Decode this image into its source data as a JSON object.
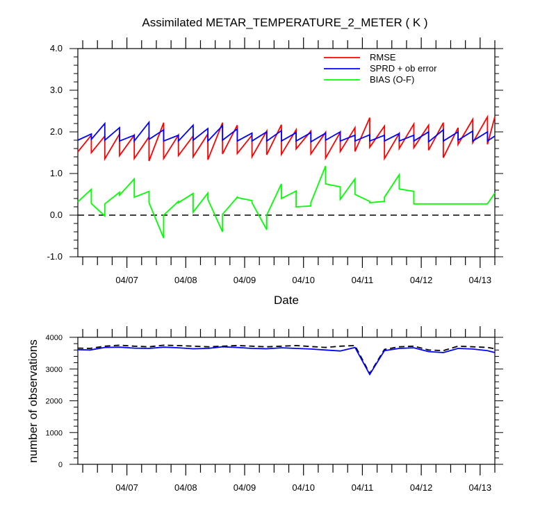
{
  "title": "Assimilated METAR_TEMPERATURE_2_METER ( K )",
  "chart_data": [
    {
      "type": "line",
      "title": "Assimilated METAR_TEMPERATURE_2_METER ( K )",
      "xlabel": "Date",
      "ylabel": "",
      "ylim": [
        -1.0,
        4.0
      ],
      "yticks": [
        -1.0,
        0.0,
        1.0,
        2.0,
        3.0,
        4.0
      ],
      "ytick_labels": [
        "-1.0",
        "0.0",
        "1.0",
        "2.0",
        "3.0",
        "4.0"
      ],
      "xlim": [
        "04/06 04:00",
        "04/13 06:00"
      ],
      "xticks": [
        "04/07",
        "04/08",
        "04/09",
        "04/10",
        "04/11",
        "04/12",
        "04/13"
      ],
      "grid": false,
      "legend": "top-right",
      "reference_line": {
        "y": 0.0,
        "style": "dashed",
        "color": "#000000"
      },
      "series": [
        {
          "name": "RMSE",
          "color": "#ff0000",
          "x": [
            "04/06 04:00",
            "04/06 09:30",
            "04/06 09:30",
            "04/06 15:00",
            "04/06 15:00",
            "04/06 21:00",
            "04/06 21:00",
            "04/07 03:00",
            "04/07 03:00",
            "04/07 09:00",
            "04/07 09:00",
            "04/07 15:00",
            "04/07 15:00",
            "04/07 21:00",
            "04/07 21:00",
            "04/08 03:00",
            "04/08 03:00",
            "04/08 09:00",
            "04/08 09:00",
            "04/08 15:00",
            "04/08 15:00",
            "04/08 21:00",
            "04/08 21:00",
            "04/09 03:00",
            "04/09 03:00",
            "04/09 09:00",
            "04/09 09:00",
            "04/09 15:00",
            "04/09 15:00",
            "04/09 21:00",
            "04/09 21:00",
            "04/10 03:00",
            "04/10 03:00",
            "04/10 09:00",
            "04/10 09:00",
            "04/10 15:00",
            "04/10 15:00",
            "04/10 21:00",
            "04/10 21:00",
            "04/11 03:00",
            "04/11 03:00",
            "04/11 09:00",
            "04/11 09:00",
            "04/11 15:00",
            "04/11 15:00",
            "04/11 21:00",
            "04/11 21:00",
            "04/12 03:00",
            "04/12 03:00",
            "04/12 09:00",
            "04/12 09:00",
            "04/12 15:00",
            "04/12 15:00",
            "04/12 21:00",
            "04/12 21:00",
            "04/13 03:00",
            "04/13 03:00",
            "04/13 06:00"
          ],
          "values": [
            1.52,
            1.92,
            1.5,
            1.9,
            1.35,
            1.95,
            1.43,
            1.92,
            1.36,
            1.88,
            1.3,
            2.22,
            1.36,
            1.92,
            1.43,
            1.9,
            1.4,
            1.95,
            1.33,
            2.22,
            1.47,
            2.16,
            1.48,
            1.92,
            1.4,
            2.02,
            1.45,
            2.17,
            1.46,
            2.05,
            1.59,
            2.02,
            1.47,
            1.99,
            1.37,
            1.99,
            1.53,
            2.1,
            1.53,
            2.34,
            1.63,
            2.14,
            1.36,
            1.96,
            1.6,
            2.19,
            1.62,
            2.16,
            1.56,
            2.22,
            1.38,
            2.1,
            1.7,
            2.3,
            1.74,
            2.36,
            1.7,
            2.36
          ]
        },
        {
          "name": "SPRD + ob error",
          "color": "#0000ff",
          "x": [
            "04/06 04:00",
            "04/06 09:30",
            "04/06 09:30",
            "04/06 15:00",
            "04/06 15:00",
            "04/06 21:00",
            "04/06 21:00",
            "04/07 03:00",
            "04/07 03:00",
            "04/07 09:00",
            "04/07 09:00",
            "04/07 15:00",
            "04/07 15:00",
            "04/07 21:00",
            "04/07 21:00",
            "04/08 03:00",
            "04/08 03:00",
            "04/08 09:00",
            "04/08 09:00",
            "04/08 15:00",
            "04/08 15:00",
            "04/08 21:00",
            "04/08 21:00",
            "04/09 03:00",
            "04/09 03:00",
            "04/09 09:00",
            "04/09 09:00",
            "04/09 15:00",
            "04/09 15:00",
            "04/09 21:00",
            "04/09 21:00",
            "04/10 03:00",
            "04/10 03:00",
            "04/10 09:00",
            "04/10 09:00",
            "04/10 15:00",
            "04/10 15:00",
            "04/10 21:00",
            "04/10 21:00",
            "04/11 03:00",
            "04/11 03:00",
            "04/11 09:00",
            "04/11 09:00",
            "04/11 15:00",
            "04/11 15:00",
            "04/11 21:00",
            "04/11 21:00",
            "04/12 03:00",
            "04/12 03:00",
            "04/12 09:00",
            "04/12 09:00",
            "04/12 15:00",
            "04/12 15:00",
            "04/12 21:00",
            "04/12 21:00",
            "04/13 03:00",
            "04/13 03:00",
            "04/13 06:00"
          ],
          "values": [
            1.8,
            1.95,
            1.82,
            2.2,
            1.8,
            2.1,
            1.78,
            1.92,
            1.78,
            2.23,
            1.82,
            2.05,
            1.78,
            1.92,
            1.78,
            2.16,
            1.8,
            2.08,
            1.78,
            2.15,
            1.8,
            2.07,
            1.78,
            1.97,
            1.78,
            2.0,
            1.78,
            2.03,
            1.78,
            1.98,
            1.78,
            1.98,
            1.76,
            1.97,
            1.8,
            2.0,
            1.78,
            1.92,
            1.78,
            1.93,
            1.78,
            1.92,
            1.78,
            1.96,
            1.78,
            1.92,
            1.78,
            2.0,
            1.76,
            2.05,
            1.78,
            2.0,
            1.8,
            2.02,
            1.78,
            2.0,
            1.78,
            1.9
          ]
        },
        {
          "name": "BIAS (O-F)",
          "color": "#00ff00",
          "x": [
            "04/06 04:00",
            "04/06 09:30",
            "04/06 09:30",
            "04/06 15:00",
            "04/06 15:00",
            "04/06 21:00",
            "04/06 21:00",
            "04/07 03:00",
            "04/07 03:00",
            "04/07 09:00",
            "04/07 09:00",
            "04/07 15:00",
            "04/07 15:00",
            "04/07 21:00",
            "04/07 21:00",
            "04/08 03:00",
            "04/08 03:00",
            "04/08 09:00",
            "04/08 09:00",
            "04/08 15:00",
            "04/08 15:00",
            "04/08 21:00",
            "04/08 21:00",
            "04/09 03:00",
            "04/09 03:00",
            "04/09 09:00",
            "04/09 09:00",
            "04/09 15:00",
            "04/09 15:00",
            "04/09 21:00",
            "04/09 21:00",
            "04/10 03:00",
            "04/10 03:00",
            "04/10 09:00",
            "04/10 09:00",
            "04/10 15:00",
            "04/10 15:00",
            "04/10 21:00",
            "04/10 21:00",
            "04/11 03:00",
            "04/11 03:00",
            "04/11 09:00",
            "04/11 09:00",
            "04/11 15:00",
            "04/11 15:00",
            "04/11 21:00",
            "04/11 21:00",
            "04/12 03:00",
            "04/12 03:00",
            "04/12 09:00",
            "04/12 09:00",
            "04/12 15:00",
            "04/12 15:00",
            "04/12 21:00",
            "04/12 21:00",
            "04/13 03:00",
            "04/13 03:00",
            "04/13 06:00"
          ],
          "values": [
            0.32,
            0.62,
            0.28,
            -0.02,
            0.27,
            0.55,
            0.48,
            0.87,
            0.43,
            0.57,
            0.3,
            -0.55,
            0.0,
            0.33,
            0.3,
            0.52,
            0.07,
            0.53,
            0.38,
            -0.4,
            0.02,
            0.43,
            0.42,
            0.35,
            0.3,
            -0.35,
            0.0,
            0.75,
            0.4,
            0.58,
            0.2,
            0.22,
            0.3,
            1.18,
            0.75,
            0.68,
            0.38,
            0.87,
            0.5,
            0.33,
            0.3,
            0.33,
            0.43,
            0.97,
            0.63,
            0.57,
            0.27,
            0.27,
            0.27,
            0.27,
            0.27,
            0.27,
            0.27,
            0.27,
            0.27,
            0.27,
            0.27,
            0.53
          ]
        }
      ]
    },
    {
      "type": "line",
      "title": "",
      "xlabel": "",
      "ylabel": "number of observations",
      "ylim": [
        0,
        4000
      ],
      "yticks": [
        0,
        1000,
        2000,
        3000,
        4000
      ],
      "ytick_labels": [
        "0",
        "1000",
        "2000",
        "3000",
        "4000"
      ],
      "xlim": [
        "04/06 04:00",
        "04/13 06:00"
      ],
      "xticks": [
        "04/07",
        "04/08",
        "04/09",
        "04/10",
        "04/11",
        "04/12",
        "04/13"
      ],
      "grid": false,
      "series": [
        {
          "name": "",
          "color": "#000000",
          "style": "dashed",
          "x": [
            "04/06 04:00",
            "04/06 09:00",
            "04/06 15:00",
            "04/06 21:00",
            "04/07 03:00",
            "04/07 09:00",
            "04/07 15:00",
            "04/07 21:00",
            "04/08 03:00",
            "04/08 09:00",
            "04/08 15:00",
            "04/08 21:00",
            "04/09 03:00",
            "04/09 09:00",
            "04/09 15:00",
            "04/09 21:00",
            "04/10 03:00",
            "04/10 09:00",
            "04/10 15:00",
            "04/10 21:00",
            "04/11 03:00",
            "04/11 09:00",
            "04/11 15:00",
            "04/11 21:00",
            "04/12 03:00",
            "04/12 09:00",
            "04/12 15:00",
            "04/12 21:00",
            "04/13 03:00",
            "04/13 06:00"
          ],
          "values": [
            3660,
            3650,
            3720,
            3750,
            3720,
            3700,
            3750,
            3740,
            3720,
            3700,
            3720,
            3740,
            3720,
            3700,
            3720,
            3740,
            3710,
            3680,
            3720,
            3740,
            2860,
            3620,
            3700,
            3720,
            3600,
            3580,
            3720,
            3700,
            3680,
            3640
          ]
        },
        {
          "name": "",
          "color": "#0000ff",
          "style": "solid",
          "x": [
            "04/06 04:00",
            "04/06 09:00",
            "04/06 15:00",
            "04/06 21:00",
            "04/07 03:00",
            "04/07 09:00",
            "04/07 15:00",
            "04/07 21:00",
            "04/08 03:00",
            "04/08 09:00",
            "04/08 15:00",
            "04/08 21:00",
            "04/09 03:00",
            "04/09 09:00",
            "04/09 15:00",
            "04/09 21:00",
            "04/10 03:00",
            "04/10 09:00",
            "04/10 15:00",
            "04/10 21:00",
            "04/11 03:00",
            "04/11 09:00",
            "04/11 15:00",
            "04/11 21:00",
            "04/12 03:00",
            "04/12 09:00",
            "04/12 15:00",
            "04/12 21:00",
            "04/13 03:00",
            "04/13 06:00"
          ],
          "values": [
            3610,
            3600,
            3680,
            3690,
            3660,
            3650,
            3690,
            3670,
            3640,
            3650,
            3700,
            3680,
            3650,
            3640,
            3670,
            3650,
            3630,
            3600,
            3570,
            3680,
            2830,
            3580,
            3650,
            3670,
            3550,
            3520,
            3650,
            3630,
            3580,
            3520
          ]
        }
      ]
    }
  ]
}
